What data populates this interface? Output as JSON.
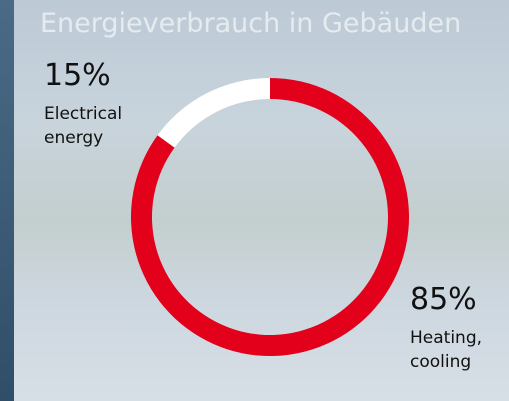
{
  "chart_data": {
    "type": "donut",
    "subtitle": "Energieverbrauch in Gebäuden",
    "categories": [
      "Heating, cooling",
      "Electrical energy"
    ],
    "values": [
      85,
      15
    ],
    "value_labels": [
      "85%",
      "15%"
    ],
    "colors": [
      "#e2001a",
      "#ffffff"
    ]
  }
}
